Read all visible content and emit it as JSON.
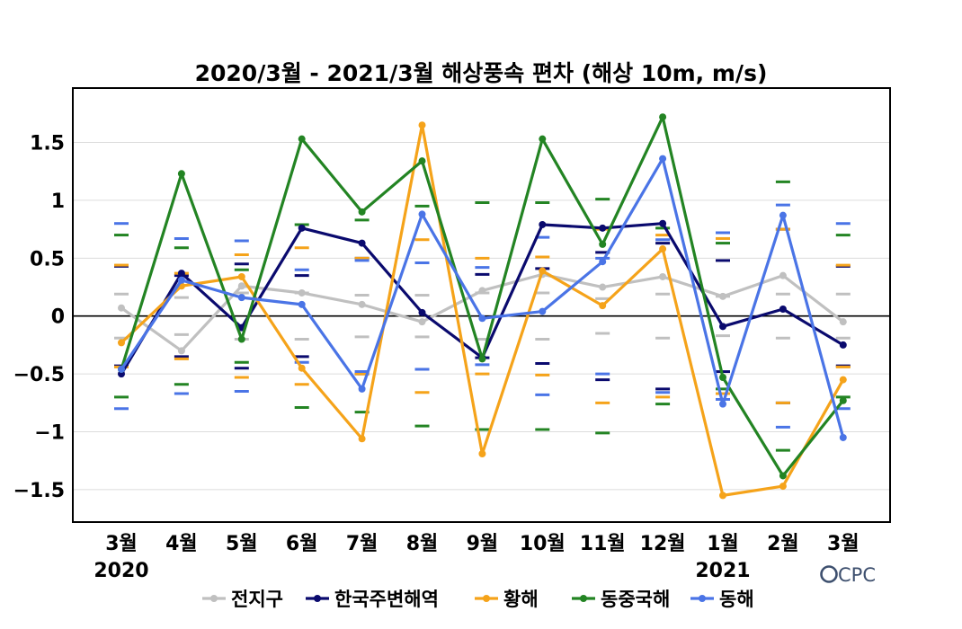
{
  "chart_data": {
    "type": "line",
    "title": "2020/3월 - 2021/3월 해상풍속 편차 (해상 10m, m/s)",
    "categories": [
      "3월",
      "4월",
      "5월",
      "6월",
      "7월",
      "8월",
      "9월",
      "10월",
      "11월",
      "12월",
      "1월",
      "2월",
      "3월"
    ],
    "year_labels": [
      "2020",
      "2021"
    ],
    "ylim": [
      -1.78,
      1.97
    ],
    "yticks": [
      -1.5,
      -1,
      -0.5,
      0,
      0.5,
      1,
      1.5
    ],
    "ytick_labels": [
      "−1.5",
      "−1",
      "−0.5",
      "0",
      "0.5",
      "1",
      "1.5"
    ],
    "grid": true,
    "zero_line": true,
    "legend_position": "bottom",
    "series": [
      {
        "name": "전지구",
        "color": "#c0c0c0",
        "values": [
          0.07,
          -0.3,
          0.26,
          0.2,
          0.1,
          -0.05,
          0.22,
          0.36,
          0.25,
          0.34,
          0.17,
          0.35,
          -0.05
        ],
        "band": [
          0.19,
          0.16,
          0.2,
          0.2,
          0.18,
          0.18,
          0.2,
          0.2,
          0.15,
          0.19,
          0.17,
          0.19,
          0.19
        ]
      },
      {
        "name": "한국주변해역",
        "color": "#0a0a6e",
        "values": [
          -0.5,
          0.37,
          -0.1,
          0.76,
          0.63,
          0.03,
          -0.36,
          0.79,
          0.76,
          0.8,
          -0.09,
          0.06,
          -0.25
        ],
        "band": [
          0.43,
          0.35,
          0.45,
          0.35,
          0.5,
          0.46,
          0.36,
          0.41,
          0.55,
          0.63,
          0.48,
          0.75,
          0.43
        ]
      },
      {
        "name": "황해",
        "color": "#f5a31a",
        "values": [
          -0.23,
          0.26,
          0.34,
          -0.45,
          -1.06,
          1.65,
          -1.19,
          0.39,
          0.09,
          0.58,
          -1.55,
          -1.47,
          -0.55
        ],
        "band": [
          0.44,
          0.37,
          0.53,
          0.59,
          0.5,
          0.66,
          0.5,
          0.51,
          0.75,
          0.7,
          0.67,
          0.75,
          0.44
        ]
      },
      {
        "name": "동중국해",
        "color": "#238423",
        "values": [
          -0.46,
          1.23,
          -0.2,
          1.53,
          0.9,
          1.34,
          -0.37,
          1.53,
          0.62,
          1.72,
          -0.53,
          -1.38,
          -0.73
        ],
        "band": [
          0.7,
          0.59,
          0.4,
          0.79,
          0.83,
          0.95,
          0.98,
          0.98,
          1.01,
          0.76,
          0.63,
          1.16,
          0.7
        ]
      },
      {
        "name": "동해",
        "color": "#4a74e6",
        "values": [
          -0.46,
          0.31,
          0.16,
          0.1,
          -0.63,
          0.88,
          -0.02,
          0.04,
          0.47,
          1.36,
          -0.76,
          0.87,
          -1.05
        ],
        "band": [
          0.8,
          0.67,
          0.65,
          0.4,
          0.48,
          0.46,
          0.42,
          0.68,
          0.5,
          0.66,
          0.72,
          0.96,
          0.8
        ]
      }
    ]
  },
  "logo": {
    "text": "CPC"
  }
}
